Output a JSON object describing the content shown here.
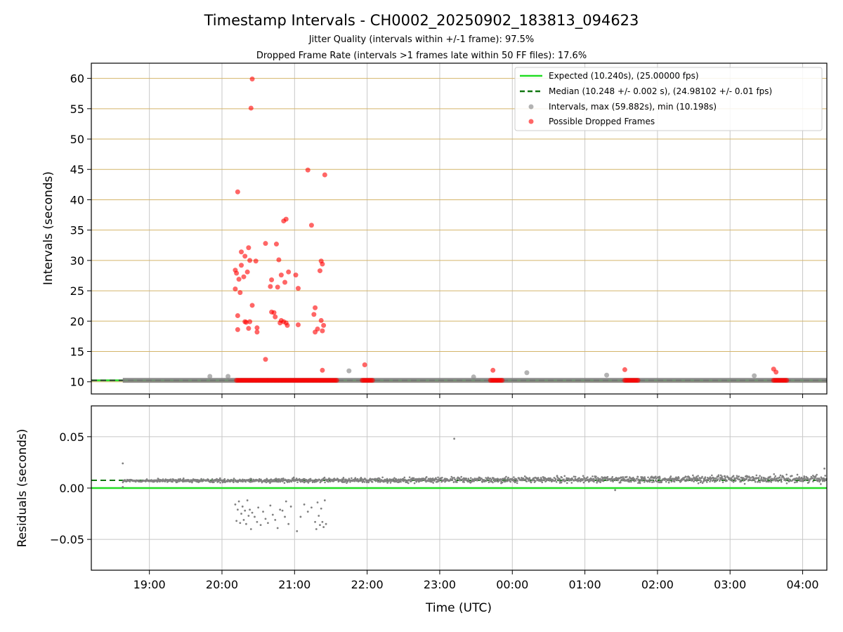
{
  "figure": {
    "title": "Timestamp Intervals - CH0002_20250902_183813_094623",
    "subtitle1": "Jitter Quality (intervals within +/-1 frame): 97.5%",
    "subtitle2": "Dropped Frame Rate (intervals >1 frames late within 50 FF files): 17.6%"
  },
  "colors": {
    "expected": "#22dd22",
    "median": "#117711",
    "intervals": "#808080",
    "dropped": "#ff0000",
    "hgrid": "#d4b56a",
    "vgrid": "#c8c8c8"
  },
  "chart_data": [
    {
      "type": "scatter",
      "panel": "intervals",
      "xlabel": "",
      "ylabel": "Intervals (seconds)",
      "xlim": [
        "18:12",
        "04:20"
      ],
      "ylim": [
        8,
        62.5
      ],
      "yticks": [
        10,
        15,
        20,
        25,
        30,
        35,
        40,
        45,
        50,
        55,
        60
      ],
      "xticks": [
        "19:00",
        "20:00",
        "21:00",
        "22:00",
        "23:00",
        "00:00",
        "01:00",
        "02:00",
        "03:00",
        "04:00"
      ],
      "grid": "horizontal and vertical",
      "legend": {
        "position": "top-right",
        "entries": [
          "Expected (10.240s), (25.00000 fps)",
          "Median (10.248 +/- 0.002 s), (24.98102 +/- 0.01 fps)",
          "Intervals, max (59.882s), min (10.198s)",
          "Possible Dropped Frames"
        ]
      },
      "lines": [
        {
          "name": "Expected (10.240s), (25.00000 fps)",
          "y": 10.24
        },
        {
          "name": "Median (10.248 +/- 0.002 s), (24.98102 +/- 0.01 fps)",
          "y": 10.248
        }
      ],
      "series": [
        {
          "name": "Intervals, max (59.882s), min (10.198s)",
          "band": {
            "x_start": "18:38",
            "x_end": "04:20",
            "y": 10.24
          },
          "points": [
            {
              "x": "19:50",
              "y": 10.9
            },
            {
              "x": "20:05",
              "y": 10.9
            },
            {
              "x": "21:45",
              "y": 11.8
            },
            {
              "x": "23:28",
              "y": 10.8
            },
            {
              "x": "00:12",
              "y": 11.5
            },
            {
              "x": "01:18",
              "y": 11.1
            },
            {
              "x": "03:20",
              "y": 11.0
            }
          ]
        },
        {
          "name": "Possible Dropped Frames",
          "bands": [
            {
              "x_start": "20:12",
              "x_end": "21:35",
              "y": 10.24
            },
            {
              "x_start": "21:56",
              "x_end": "22:05",
              "y": 10.24
            },
            {
              "x_start": "23:42",
              "x_end": "23:52",
              "y": 10.24
            },
            {
              "x_start": "01:33",
              "x_end": "01:45",
              "y": 10.24
            },
            {
              "x_start": "03:36",
              "x_end": "03:47",
              "y": 10.24
            }
          ],
          "points": [
            {
              "x": "20:25",
              "y": 59.9
            },
            {
              "x": "20:24",
              "y": 55.1
            },
            {
              "x": "20:13",
              "y": 41.3
            },
            {
              "x": "21:11",
              "y": 44.9
            },
            {
              "x": "21:25",
              "y": 44.1
            },
            {
              "x": "20:53",
              "y": 36.8
            },
            {
              "x": "20:51",
              "y": 36.5
            },
            {
              "x": "21:14",
              "y": 35.8
            },
            {
              "x": "20:36",
              "y": 32.8
            },
            {
              "x": "20:45",
              "y": 32.7
            },
            {
              "x": "20:22",
              "y": 32.1
            },
            {
              "x": "20:16",
              "y": 31.4
            },
            {
              "x": "20:19",
              "y": 30.7
            },
            {
              "x": "20:23",
              "y": 30.0
            },
            {
              "x": "20:28",
              "y": 29.9
            },
            {
              "x": "21:22",
              "y": 29.9
            },
            {
              "x": "21:23",
              "y": 29.4
            },
            {
              "x": "20:16",
              "y": 29.2
            },
            {
              "x": "20:47",
              "y": 30.1
            },
            {
              "x": "20:11",
              "y": 28.4
            },
            {
              "x": "20:12",
              "y": 27.9
            },
            {
              "x": "20:21",
              "y": 28.1
            },
            {
              "x": "20:55",
              "y": 28.1
            },
            {
              "x": "21:21",
              "y": 28.3
            },
            {
              "x": "21:01",
              "y": 27.6
            },
            {
              "x": "20:49",
              "y": 27.6
            },
            {
              "x": "20:18",
              "y": 27.3
            },
            {
              "x": "20:14",
              "y": 26.9
            },
            {
              "x": "20:41",
              "y": 26.8
            },
            {
              "x": "20:52",
              "y": 26.4
            },
            {
              "x": "20:40",
              "y": 25.7
            },
            {
              "x": "20:46",
              "y": 25.6
            },
            {
              "x": "20:11",
              "y": 25.3
            },
            {
              "x": "21:03",
              "y": 25.4
            },
            {
              "x": "20:15",
              "y": 24.7
            },
            {
              "x": "20:25",
              "y": 22.6
            },
            {
              "x": "21:17",
              "y": 22.2
            },
            {
              "x": "20:41",
              "y": 21.5
            },
            {
              "x": "20:43",
              "y": 21.4
            },
            {
              "x": "21:16",
              "y": 21.1
            },
            {
              "x": "20:13",
              "y": 20.9
            },
            {
              "x": "20:44",
              "y": 20.7
            },
            {
              "x": "20:19",
              "y": 19.9
            },
            {
              "x": "20:20",
              "y": 19.8
            },
            {
              "x": "20:23",
              "y": 19.9
            },
            {
              "x": "20:48",
              "y": 19.7
            },
            {
              "x": "20:49",
              "y": 20.1
            },
            {
              "x": "20:51",
              "y": 19.9
            },
            {
              "x": "20:53",
              "y": 19.7
            },
            {
              "x": "20:54",
              "y": 19.3
            },
            {
              "x": "21:03",
              "y": 19.4
            },
            {
              "x": "21:22",
              "y": 20.1
            },
            {
              "x": "21:24",
              "y": 19.3
            },
            {
              "x": "20:29",
              "y": 18.9
            },
            {
              "x": "20:22",
              "y": 18.8
            },
            {
              "x": "20:13",
              "y": 18.6
            },
            {
              "x": "20:29",
              "y": 18.2
            },
            {
              "x": "21:19",
              "y": 18.7
            },
            {
              "x": "21:17",
              "y": 18.2
            },
            {
              "x": "21:23",
              "y": 18.4
            },
            {
              "x": "20:36",
              "y": 13.7
            },
            {
              "x": "21:23",
              "y": 11.9
            },
            {
              "x": "21:58",
              "y": 12.8
            },
            {
              "x": "23:44",
              "y": 11.9
            },
            {
              "x": "01:33",
              "y": 12.0
            },
            {
              "x": "03:36",
              "y": 12.1
            },
            {
              "x": "03:38",
              "y": 11.6
            }
          ]
        }
      ]
    },
    {
      "type": "scatter",
      "panel": "residuals",
      "xlabel": "Time (UTC)",
      "ylabel": "Residuals (seconds)",
      "xlim": [
        "18:12",
        "04:20"
      ],
      "ylim": [
        -0.08,
        0.08
      ],
      "yticks": [
        -0.05,
        0.0,
        0.05
      ],
      "yticklabels": [
        "−0.05",
        "0.00",
        "0.05"
      ],
      "xticks": [
        "19:00",
        "20:00",
        "21:00",
        "22:00",
        "23:00",
        "00:00",
        "01:00",
        "02:00",
        "03:00",
        "04:00"
      ],
      "grid": "horizontal and vertical",
      "lines": [
        {
          "name": "Expected",
          "y": 0.0
        },
        {
          "name": "Median",
          "y": 0.0075
        }
      ],
      "series": [
        {
          "name": "Residuals",
          "band": {
            "x_start": "18:38",
            "x_end": "04:20",
            "y_start": 0.007,
            "y_end": 0.009,
            "spread": 0.004
          },
          "points": [
            {
              "x": "18:38",
              "y": 0.024
            },
            {
              "x": "18:38",
              "y": 0.001
            },
            {
              "x": "23:12",
              "y": 0.048
            },
            {
              "x": "01:25",
              "y": -0.002
            },
            {
              "x": "04:18",
              "y": 0.019
            },
            {
              "x": "20:11",
              "y": -0.016
            },
            {
              "x": "20:12",
              "y": -0.032
            },
            {
              "x": "20:13",
              "y": -0.021
            },
            {
              "x": "20:14",
              "y": -0.013
            },
            {
              "x": "20:15",
              "y": -0.034
            },
            {
              "x": "20:16",
              "y": -0.025
            },
            {
              "x": "20:17",
              "y": -0.018
            },
            {
              "x": "20:18",
              "y": -0.031
            },
            {
              "x": "20:19",
              "y": -0.022
            },
            {
              "x": "20:20",
              "y": -0.035
            },
            {
              "x": "20:21",
              "y": -0.012
            },
            {
              "x": "20:22",
              "y": -0.027
            },
            {
              "x": "20:23",
              "y": -0.021
            },
            {
              "x": "20:24",
              "y": -0.04
            },
            {
              "x": "20:25",
              "y": -0.024
            },
            {
              "x": "20:27",
              "y": -0.028
            },
            {
              "x": "20:29",
              "y": -0.033
            },
            {
              "x": "20:30",
              "y": -0.019
            },
            {
              "x": "20:32",
              "y": -0.036
            },
            {
              "x": "20:34",
              "y": -0.023
            },
            {
              "x": "20:36",
              "y": -0.03
            },
            {
              "x": "20:38",
              "y": -0.034
            },
            {
              "x": "20:40",
              "y": -0.017
            },
            {
              "x": "20:42",
              "y": -0.026
            },
            {
              "x": "20:44",
              "y": -0.031
            },
            {
              "x": "20:46",
              "y": -0.039
            },
            {
              "x": "20:48",
              "y": -0.021
            },
            {
              "x": "20:50",
              "y": -0.022
            },
            {
              "x": "20:52",
              "y": -0.028
            },
            {
              "x": "20:53",
              "y": -0.013
            },
            {
              "x": "20:55",
              "y": -0.035
            },
            {
              "x": "20:57",
              "y": -0.018
            },
            {
              "x": "21:02",
              "y": -0.042
            },
            {
              "x": "21:05",
              "y": -0.028
            },
            {
              "x": "21:08",
              "y": -0.016
            },
            {
              "x": "21:11",
              "y": -0.023
            },
            {
              "x": "21:14",
              "y": -0.019
            },
            {
              "x": "21:17",
              "y": -0.033
            },
            {
              "x": "21:18",
              "y": -0.04
            },
            {
              "x": "21:19",
              "y": -0.014
            },
            {
              "x": "21:20",
              "y": -0.027
            },
            {
              "x": "21:21",
              "y": -0.036
            },
            {
              "x": "21:22",
              "y": -0.02
            },
            {
              "x": "21:23",
              "y": -0.033
            },
            {
              "x": "21:24",
              "y": -0.038
            },
            {
              "x": "21:25",
              "y": -0.012
            },
            {
              "x": "21:26",
              "y": -0.035
            }
          ]
        }
      ]
    }
  ]
}
